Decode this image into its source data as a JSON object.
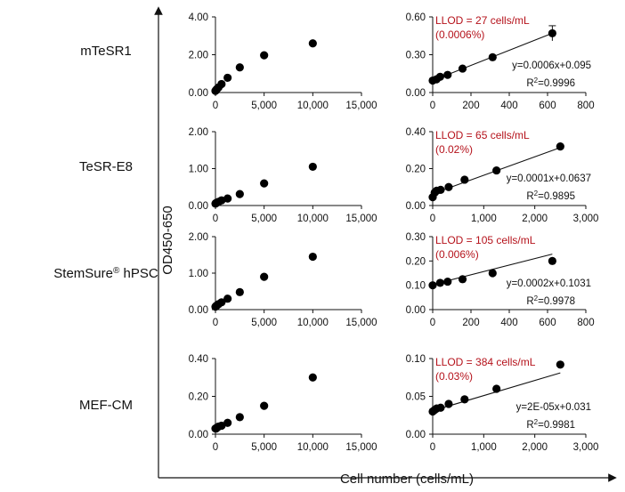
{
  "figure": {
    "y_label": "OD450-650",
    "x_label": "Cell number (cells/mL)"
  },
  "chart_data": [
    {
      "id": "mTeSR1-full",
      "type": "scatter",
      "row": 0,
      "col": 0,
      "media": "mTeSR1",
      "x": [
        0,
        39,
        78,
        156,
        313,
        625,
        1250,
        2500,
        5000,
        10000
      ],
      "y": [
        0.09,
        0.11,
        0.14,
        0.19,
        0.27,
        0.45,
        0.78,
        1.33,
        1.97,
        2.6
      ],
      "xlim": [
        0,
        15000
      ],
      "ylim": [
        0,
        4
      ],
      "xticks": [
        "0",
        "5,000",
        "10,000",
        "15,000"
      ],
      "yticks": [
        "0.00",
        "2.00",
        "4.00"
      ],
      "xtick_vals": [
        0,
        5000,
        10000,
        15000
      ],
      "ytick_vals": [
        0,
        2,
        4
      ]
    },
    {
      "id": "mTeSR1-low",
      "type": "scatter",
      "row": 0,
      "col": 1,
      "x": [
        0,
        20,
        39,
        78,
        156,
        313,
        625
      ],
      "y": [
        0.095,
        0.105,
        0.125,
        0.14,
        0.19,
        0.28,
        0.47
      ],
      "yerr": [
        0,
        0,
        0,
        0,
        0,
        0,
        0.06
      ],
      "fit": {
        "slope": 0.0006,
        "intercept": 0.095
      },
      "equation": "y=0.0006x+0.095",
      "r2_prefix": "R",
      "r2_sup": "2",
      "r2_value": "=0.9996",
      "llod_line1": "LLOD = 27 cells/mL",
      "llod_line2": "(0.0006%)",
      "xlim": [
        0,
        800
      ],
      "ylim": [
        0,
        0.6
      ],
      "xticks": [
        "0",
        "200",
        "400",
        "600",
        "800"
      ],
      "yticks": [
        "0.00",
        "0.30",
        "0.60"
      ],
      "xtick_vals": [
        0,
        200,
        400,
        600,
        800
      ],
      "ytick_vals": [
        0,
        0.3,
        0.6
      ]
    },
    {
      "id": "TeSR-E8-full",
      "type": "scatter",
      "row": 1,
      "col": 0,
      "media": "TeSR-E8",
      "x": [
        0,
        39,
        78,
        156,
        313,
        625,
        1250,
        2500,
        5000,
        10000
      ],
      "y": [
        0.05,
        0.06,
        0.07,
        0.08,
        0.1,
        0.14,
        0.19,
        0.31,
        0.6,
        1.05
      ],
      "xlim": [
        0,
        15000
      ],
      "ylim": [
        0,
        2
      ],
      "xticks": [
        "0",
        "5,000",
        "10,000",
        "15,000"
      ],
      "yticks": [
        "0.00",
        "1.00",
        "2.00"
      ],
      "xtick_vals": [
        0,
        5000,
        10000,
        15000
      ],
      "ytick_vals": [
        0,
        1,
        2
      ]
    },
    {
      "id": "TeSR-E8-low",
      "type": "scatter",
      "row": 1,
      "col": 1,
      "x": [
        0,
        39,
        78,
        156,
        313,
        625,
        1250,
        2500
      ],
      "y": [
        0.045,
        0.07,
        0.08,
        0.085,
        0.1,
        0.14,
        0.19,
        0.32
      ],
      "fit": {
        "slope": 0.0001,
        "intercept": 0.0637
      },
      "equation": "y=0.0001x+0.0637",
      "r2_prefix": "R",
      "r2_sup": "2",
      "r2_value": "=0.9895",
      "llod_line1": "LLOD = 65 cells/mL",
      "llod_line2": "(0.02%)",
      "xlim": [
        0,
        3000
      ],
      "ylim": [
        0,
        0.4
      ],
      "xticks": [
        "0",
        "1,000",
        "2,000",
        "3,000"
      ],
      "yticks": [
        "0.00",
        "0.20",
        "0.40"
      ],
      "xtick_vals": [
        0,
        1000,
        2000,
        3000
      ],
      "ytick_vals": [
        0,
        0.2,
        0.4
      ]
    },
    {
      "id": "StemSure-full",
      "type": "scatter",
      "row": 2,
      "col": 0,
      "media": "StemSure",
      "media_sup": "®",
      "media_suffix": " hPSC",
      "x": [
        0,
        39,
        78,
        156,
        313,
        625,
        1250,
        2500,
        5000,
        10000
      ],
      "y": [
        0.08,
        0.09,
        0.1,
        0.12,
        0.15,
        0.2,
        0.3,
        0.48,
        0.9,
        1.45
      ],
      "xlim": [
        0,
        15000
      ],
      "ylim": [
        0,
        2
      ],
      "xticks": [
        "0",
        "5,000",
        "10,000",
        "15,000"
      ],
      "yticks": [
        "0.00",
        "1.00",
        "2.00"
      ],
      "xtick_vals": [
        0,
        5000,
        10000,
        15000
      ],
      "ytick_vals": [
        0,
        1,
        2
      ]
    },
    {
      "id": "StemSure-low",
      "type": "scatter",
      "row": 2,
      "col": 1,
      "x": [
        0,
        39,
        78,
        156,
        313,
        625
      ],
      "y": [
        0.1,
        0.11,
        0.115,
        0.125,
        0.15,
        0.2
      ],
      "fit": {
        "slope": 0.0002,
        "intercept": 0.1031
      },
      "equation": "y=0.0002x+0.1031",
      "r2_prefix": "R",
      "r2_sup": "2",
      "r2_value": "=0.9978",
      "llod_line1": "LLOD = 105 cells/mL",
      "llod_line2": "(0.006%)",
      "xlim": [
        0,
        800
      ],
      "ylim": [
        0,
        0.3
      ],
      "xticks": [
        "0",
        "200",
        "400",
        "600",
        "800"
      ],
      "yticks": [
        "0.00",
        "0.10",
        "0.20",
        "0.30"
      ],
      "xtick_vals": [
        0,
        200,
        400,
        600,
        800
      ],
      "ytick_vals": [
        0,
        0.1,
        0.2,
        0.3
      ]
    },
    {
      "id": "MEF-CM-full",
      "type": "scatter",
      "row": 3,
      "col": 0,
      "media": "MEF-CM",
      "x": [
        0,
        78,
        156,
        313,
        625,
        1250,
        2500,
        5000,
        10000
      ],
      "y": [
        0.03,
        0.03,
        0.035,
        0.04,
        0.045,
        0.06,
        0.09,
        0.15,
        0.3
      ],
      "xlim": [
        0,
        15000
      ],
      "ylim": [
        0,
        0.4
      ],
      "xticks": [
        "0",
        "5,000",
        "10,000",
        "15,000"
      ],
      "yticks": [
        "0.00",
        "0.20",
        "0.40"
      ],
      "xtick_vals": [
        0,
        5000,
        10000,
        15000
      ],
      "ytick_vals": [
        0,
        0.2,
        0.4
      ]
    },
    {
      "id": "MEF-CM-low",
      "type": "scatter",
      "row": 3,
      "col": 1,
      "x": [
        0,
        39,
        78,
        156,
        313,
        625,
        1250,
        2500
      ],
      "y": [
        0.03,
        0.032,
        0.034,
        0.035,
        0.04,
        0.046,
        0.06,
        0.092
      ],
      "fit": {
        "slope": 2e-05,
        "intercept": 0.031
      },
      "equation": "y=2E-05x+0.031",
      "r2_prefix": "R",
      "r2_sup": "2",
      "r2_value": "=0.9981",
      "llod_line1": "LLOD = 384 cells/mL",
      "llod_line2": "(0.03%)",
      "xlim": [
        0,
        3000
      ],
      "ylim": [
        0,
        0.1
      ],
      "xticks": [
        "0",
        "1,000",
        "2,000",
        "3,000"
      ],
      "yticks": [
        "0.00",
        "0.05",
        "0.10"
      ],
      "xtick_vals": [
        0,
        1000,
        2000,
        3000
      ],
      "ytick_vals": [
        0,
        0.05,
        0.1
      ]
    }
  ]
}
